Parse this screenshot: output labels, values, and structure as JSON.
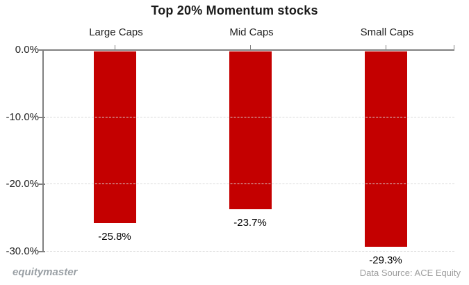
{
  "chart_data": {
    "type": "bar",
    "title": "Top 20% Momentum stocks",
    "categories": [
      "Large Caps",
      "Mid Caps",
      "Small Caps"
    ],
    "values": [
      -25.8,
      -23.7,
      -29.3
    ],
    "value_labels": [
      "-25.8%",
      "-23.7%",
      "-29.3%"
    ],
    "xlabel": "",
    "ylabel": "",
    "ylim": [
      -30,
      0
    ],
    "ytick_labels": [
      "0.0%",
      "-10.0%",
      "-20.0%",
      "-30.0%"
    ],
    "ytick_values": [
      0,
      -10,
      -20,
      -30
    ],
    "grid": "horizontal-dashed",
    "legend": "none",
    "bar_color": "#c40000"
  },
  "footer": {
    "brand": "equitymaster",
    "source": "Data Source: ACE Equity"
  },
  "colors": {
    "bar": "#c40000",
    "axis": "#808080",
    "gridline": "#d9d9d9",
    "text": "#1a1a1a",
    "muted": "#9aa0a5"
  }
}
